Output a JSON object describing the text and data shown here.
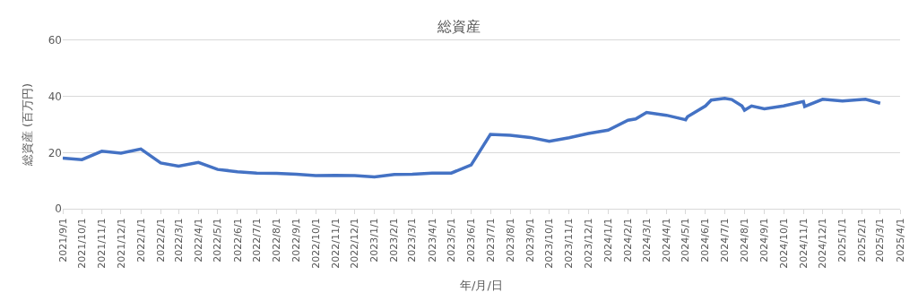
{
  "chart_data": {
    "type": "line",
    "title": "総資産",
    "xlabel": "年/月/日",
    "ylabel": "総資産 (百万円)",
    "x": [
      "2021-09-01",
      "2021-10-01",
      "2021-11-01",
      "2021-12-01",
      "2022-01-01",
      "2022-02-01",
      "2022-03-01",
      "2022-04-01",
      "2022-05-01",
      "2022-06-01",
      "2022-07-01",
      "2022-08-01",
      "2022-09-01",
      "2022-10-01",
      "2022-11-01",
      "2022-12-01",
      "2023-01-01",
      "2023-02-01",
      "2023-03-01",
      "2023-04-01",
      "2023-05-01",
      "2023-06-01",
      "2023-07-01",
      "2023-08-01",
      "2023-09-01",
      "2023-10-01",
      "2023-11-01",
      "2023-12-01",
      "2024-01-01",
      "2024-02-01",
      "2024-02-13",
      "2024-03-01",
      "2024-04-01",
      "2024-05-01",
      "2024-05-04",
      "2024-06-01",
      "2024-06-10",
      "2024-07-01",
      "2024-07-12",
      "2024-07-28",
      "2024-08-01",
      "2024-08-12",
      "2024-09-01",
      "2024-10-01",
      "2024-11-01",
      "2024-11-03",
      "2024-12-01",
      "2025-01-01",
      "2025-02-06",
      "2025-03-01"
    ],
    "series": [
      {
        "color": "#4472c4",
        "values": [
          18,
          17.5,
          20.5,
          19.8,
          21.3,
          16.3,
          15.2,
          16.5,
          14,
          13.2,
          12.7,
          12.6,
          12.3,
          11.8,
          11.9,
          11.8,
          11.3,
          12.2,
          12.3,
          12.7,
          12.7,
          15.6,
          26.5,
          26.2,
          25.4,
          24,
          25.3,
          26.8,
          28,
          31.5,
          32,
          34.3,
          33.3,
          31.7,
          32.8,
          36.6,
          38.7,
          39.3,
          38.9,
          36.6,
          35.1,
          36.6,
          35.6,
          36.6,
          38.2,
          36.4,
          39,
          38.4,
          39,
          37.6
        ]
      }
    ],
    "xlim": [
      "2021-09-01",
      "2025-04-01"
    ],
    "xticks": [
      {
        "value": "2021-09-01",
        "label": "2021/9/1"
      },
      {
        "value": "2021-10-01",
        "label": "2021/10/1"
      },
      {
        "value": "2021-11-01",
        "label": "2021/11/1"
      },
      {
        "value": "2021-12-01",
        "label": "2021/12/1"
      },
      {
        "value": "2022-01-01",
        "label": "2022/1/1"
      },
      {
        "value": "2022-02-01",
        "label": "2022/2/1"
      },
      {
        "value": "2022-03-01",
        "label": "2022/3/1"
      },
      {
        "value": "2022-04-01",
        "label": "2022/4/1"
      },
      {
        "value": "2022-05-01",
        "label": "2022/5/1"
      },
      {
        "value": "2022-06-01",
        "label": "2022/6/1"
      },
      {
        "value": "2022-07-01",
        "label": "2022/7/1"
      },
      {
        "value": "2022-08-01",
        "label": "2022/8/1"
      },
      {
        "value": "2022-09-01",
        "label": "2022/9/1"
      },
      {
        "value": "2022-10-01",
        "label": "2022/10/1"
      },
      {
        "value": "2022-11-01",
        "label": "2022/11/1"
      },
      {
        "value": "2022-12-01",
        "label": "2022/12/1"
      },
      {
        "value": "2023-01-01",
        "label": "2023/1/1"
      },
      {
        "value": "2023-02-01",
        "label": "2023/2/1"
      },
      {
        "value": "2023-03-01",
        "label": "2023/3/1"
      },
      {
        "value": "2023-04-01",
        "label": "2023/4/1"
      },
      {
        "value": "2023-05-01",
        "label": "2023/5/1"
      },
      {
        "value": "2023-06-01",
        "label": "2023/6/1"
      },
      {
        "value": "2023-07-01",
        "label": "2023/7/1"
      },
      {
        "value": "2023-08-01",
        "label": "2023/8/1"
      },
      {
        "value": "2023-09-01",
        "label": "2023/9/1"
      },
      {
        "value": "2023-10-01",
        "label": "2023/10/1"
      },
      {
        "value": "2023-11-01",
        "label": "2023/11/1"
      },
      {
        "value": "2023-12-01",
        "label": "2023/12/1"
      },
      {
        "value": "2024-01-01",
        "label": "2024/1/1"
      },
      {
        "value": "2024-02-01",
        "label": "2024/2/1"
      },
      {
        "value": "2024-03-01",
        "label": "2024/3/1"
      },
      {
        "value": "2024-04-01",
        "label": "2024/4/1"
      },
      {
        "value": "2024-05-01",
        "label": "2024/5/1"
      },
      {
        "value": "2024-06-01",
        "label": "2024/6/1"
      },
      {
        "value": "2024-07-01",
        "label": "2024/7/1"
      },
      {
        "value": "2024-08-01",
        "label": "2024/8/1"
      },
      {
        "value": "2024-09-01",
        "label": "2024/9/1"
      },
      {
        "value": "2024-10-01",
        "label": "2024/10/1"
      },
      {
        "value": "2024-11-01",
        "label": "2024/11/1"
      },
      {
        "value": "2024-12-01",
        "label": "2024/12/1"
      },
      {
        "value": "2025-01-01",
        "label": "2025/1/1"
      },
      {
        "value": "2025-02-01",
        "label": "2025/2/1"
      },
      {
        "value": "2025-03-01",
        "label": "2025/3/1"
      },
      {
        "value": "2025-04-01",
        "label": "2025/4/1"
      }
    ],
    "ylim": [
      0,
      60
    ],
    "yticks": [
      0,
      20,
      40,
      60
    ],
    "grid": "y",
    "marker": "none",
    "line_style": "solid"
  }
}
